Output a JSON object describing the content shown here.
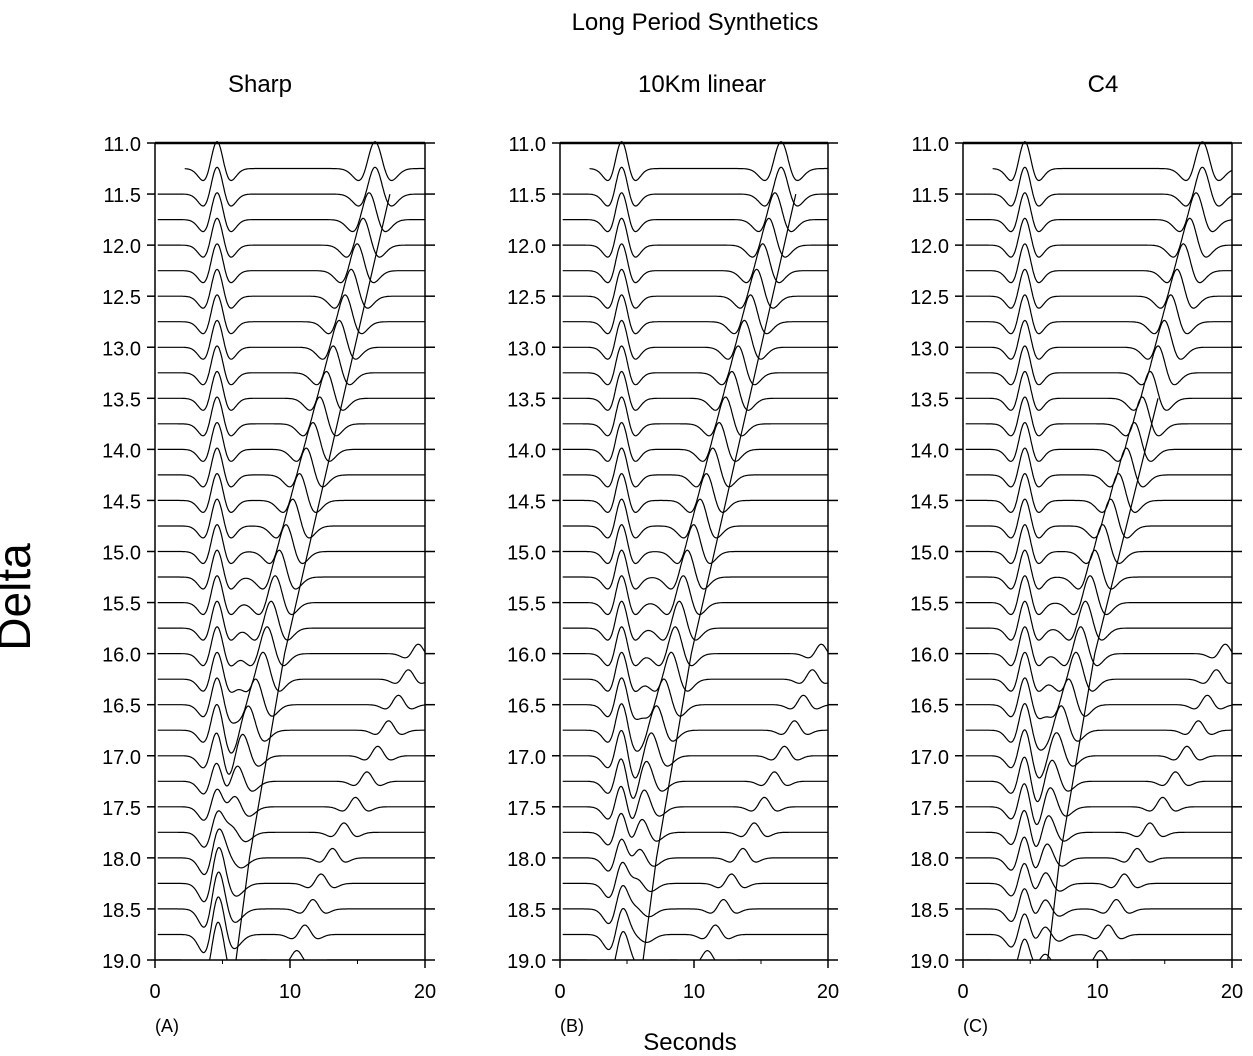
{
  "figure": {
    "title": "Long Period Synthetics",
    "ylabel": "Delta",
    "xlabel": "Seconds"
  },
  "chart_data": [
    {
      "type": "line",
      "subplot_title": "Sharp",
      "panel_label": "(A)",
      "xlim": [
        0,
        20
      ],
      "ylim": [
        11.0,
        19.0
      ],
      "xticks": [
        0,
        10,
        20
      ],
      "yticks": [
        "11.0",
        "11.5",
        "12.0",
        "12.5",
        "13.0",
        "13.5",
        "14.0",
        "14.5",
        "15.0",
        "15.5",
        "16.0",
        "16.5",
        "17.0",
        "17.5",
        "18.0",
        "18.5",
        "19.0"
      ],
      "y_inverted": true,
      "traces": {
        "delta_start": 11.0,
        "delta_step": 0.25,
        "count": 32,
        "first_arrival_s": 4.6,
        "second_arrival": {
          "delta": [
            11.25,
            13.0,
            15.0,
            16.0,
            16.5,
            17.0,
            18.0,
            18.75
          ],
          "time_s": [
            16.3,
            13.2,
            9.2,
            8.0,
            6.9,
            6.0,
            5.1,
            4.9
          ]
        },
        "late_phase": {
          "delta": [
            15.75,
            16.5,
            17.0,
            17.5,
            18.0,
            18.75
          ],
          "time_s": [
            19.5,
            17.3,
            15.7,
            14.0,
            12.3,
            10.5
          ]
        },
        "envelope_line": {
          "delta": [
            11.5,
            16.0,
            18.0,
            19.0
          ],
          "time_s": [
            17.4,
            9.6,
            7.0,
            6.0
          ]
        }
      }
    },
    {
      "type": "line",
      "subplot_title": "10Km linear",
      "panel_label": "(B)",
      "xlim": [
        0,
        20
      ],
      "ylim": [
        11.0,
        19.0
      ],
      "xticks": [
        0,
        10,
        20
      ],
      "yticks": [
        "11.0",
        "11.5",
        "12.0",
        "12.5",
        "13.0",
        "13.5",
        "14.0",
        "14.5",
        "15.0",
        "15.5",
        "16.0",
        "16.5",
        "17.0",
        "17.5",
        "18.0",
        "18.5",
        "19.0"
      ],
      "y_inverted": true,
      "traces": {
        "delta_start": 11.0,
        "delta_step": 0.25,
        "count": 32,
        "first_arrival_s": 4.6,
        "second_arrival": {
          "delta": [
            11.25,
            13.0,
            15.0,
            16.0,
            16.5,
            17.0,
            18.0,
            18.75
          ],
          "time_s": [
            16.5,
            13.3,
            9.5,
            8.3,
            7.2,
            6.4,
            5.6,
            5.3
          ]
        },
        "late_phase": {
          "delta": [
            15.75,
            16.5,
            17.0,
            17.5,
            18.0,
            18.75
          ],
          "time_s": [
            19.5,
            17.5,
            16.0,
            14.5,
            12.8,
            11.0
          ]
        },
        "envelope_line": {
          "delta": [
            11.5,
            16.0,
            18.0,
            19.0
          ],
          "time_s": [
            17.6,
            9.8,
            7.2,
            6.2
          ]
        }
      }
    },
    {
      "type": "line",
      "subplot_title": "C4",
      "panel_label": "(C)",
      "xlim": [
        0,
        20
      ],
      "ylim": [
        11.0,
        19.0
      ],
      "xticks": [
        0,
        10,
        20
      ],
      "yticks": [
        "11.0",
        "11.5",
        "12.0",
        "12.5",
        "13.0",
        "13.5",
        "14.0",
        "14.5",
        "15.0",
        "15.5",
        "16.0",
        "16.5",
        "17.0",
        "17.5",
        "18.0",
        "18.5",
        "19.0"
      ],
      "y_inverted": true,
      "traces": {
        "delta_start": 11.0,
        "delta_step": 0.25,
        "count": 32,
        "first_arrival_s": 4.6,
        "second_arrival": {
          "delta": [
            11.25,
            13.0,
            15.0,
            16.0,
            16.5,
            17.0,
            18.0,
            18.75
          ],
          "time_s": [
            17.8,
            14.5,
            9.8,
            8.4,
            7.3,
            6.6,
            6.0,
            5.9
          ]
        },
        "late_phase": {
          "delta": [
            15.75,
            16.5,
            17.0,
            17.5,
            18.0,
            18.75
          ],
          "time_s": [
            19.5,
            17.5,
            15.8,
            13.9,
            12.0,
            10.2
          ]
        },
        "envelope_line": {
          "delta": [
            13.5,
            16.0,
            18.0,
            19.0
          ],
          "time_s": [
            14.5,
            9.8,
            7.2,
            6.3
          ]
        }
      }
    }
  ]
}
